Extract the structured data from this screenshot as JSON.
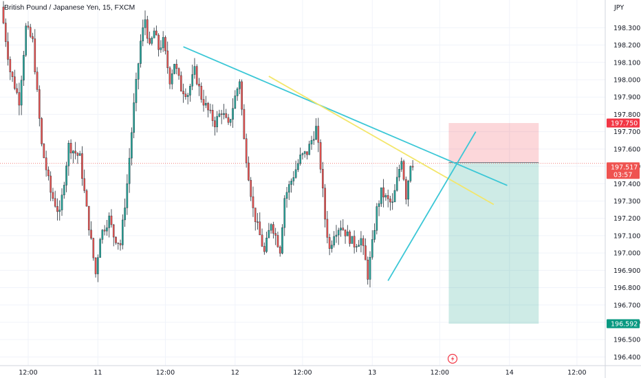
{
  "header": {
    "title": "British Pound / Japanese Yen, 15, FXCM"
  },
  "axis": {
    "currency": "JPY"
  },
  "chart_data": {
    "type": "candlestick",
    "title": "British Pound / Japanese Yen, 15, FXCM",
    "ylim": [
      196.35,
      198.46
    ],
    "y_ticks": [
      "198.300",
      "198.200",
      "198.100",
      "198.000",
      "197.900",
      "197.800",
      "197.700",
      "197.600",
      "197.500",
      "197.400",
      "197.300",
      "197.200",
      "197.100",
      "197.000",
      "196.900",
      "196.800",
      "196.700",
      "196.600",
      "196.500",
      "196.400"
    ],
    "x_ticks": [
      "12:00",
      "11",
      "12:00",
      "12",
      "12:00",
      "13",
      "12:00",
      "14",
      "12:00"
    ],
    "colors": {
      "up": "#26a69a",
      "down": "#ef5350",
      "candle": "#1f2a33"
    },
    "anchors": [
      {
        "t": 0,
        "p": 198.42
      },
      {
        "t": 4,
        "p": 198.05
      },
      {
        "t": 8,
        "p": 197.88
      },
      {
        "t": 11,
        "p": 198.3
      },
      {
        "t": 14,
        "p": 198.22
      },
      {
        "t": 18,
        "p": 197.62
      },
      {
        "t": 22,
        "p": 197.35
      },
      {
        "t": 26,
        "p": 197.22
      },
      {
        "t": 30,
        "p": 197.62
      },
      {
        "t": 35,
        "p": 197.55
      },
      {
        "t": 38,
        "p": 197.25
      },
      {
        "t": 42,
        "p": 196.88
      },
      {
        "t": 44,
        "p": 197.1
      },
      {
        "t": 48,
        "p": 197.2
      },
      {
        "t": 50,
        "p": 197.1
      },
      {
        "t": 53,
        "p": 197.05
      },
      {
        "t": 56,
        "p": 197.4
      },
      {
        "t": 59,
        "p": 197.85
      },
      {
        "t": 62,
        "p": 198.22
      },
      {
        "t": 64,
        "p": 198.35
      },
      {
        "t": 66,
        "p": 198.18
      },
      {
        "t": 68,
        "p": 198.28
      },
      {
        "t": 70,
        "p": 198.18
      },
      {
        "t": 72,
        "p": 198.22
      },
      {
        "t": 75,
        "p": 198.0
      },
      {
        "t": 77,
        "p": 198.1
      },
      {
        "t": 80,
        "p": 197.95
      },
      {
        "t": 83,
        "p": 197.92
      },
      {
        "t": 86,
        "p": 198.05
      },
      {
        "t": 89,
        "p": 197.9
      },
      {
        "t": 92,
        "p": 197.82
      },
      {
        "t": 95,
        "p": 197.75
      },
      {
        "t": 98,
        "p": 197.82
      },
      {
        "t": 101,
        "p": 197.73
      },
      {
        "t": 104,
        "p": 197.9
      },
      {
        "t": 106,
        "p": 198.0
      },
      {
        "t": 108,
        "p": 197.65
      },
      {
        "t": 110,
        "p": 197.45
      },
      {
        "t": 112,
        "p": 197.25
      },
      {
        "t": 114,
        "p": 197.15
      },
      {
        "t": 117,
        "p": 197.0
      },
      {
        "t": 120,
        "p": 197.18
      },
      {
        "t": 124,
        "p": 197.02
      },
      {
        "t": 126,
        "p": 197.32
      },
      {
        "t": 130,
        "p": 197.45
      },
      {
        "t": 133,
        "p": 197.55
      },
      {
        "t": 136,
        "p": 197.58
      },
      {
        "t": 138,
        "p": 197.65
      },
      {
        "t": 140,
        "p": 197.72
      },
      {
        "t": 142,
        "p": 197.5
      },
      {
        "t": 144,
        "p": 197.2
      },
      {
        "t": 146,
        "p": 197.02
      },
      {
        "t": 148,
        "p": 197.12
      },
      {
        "t": 151,
        "p": 197.16
      },
      {
        "t": 154,
        "p": 197.1
      },
      {
        "t": 157,
        "p": 197.05
      },
      {
        "t": 160,
        "p": 197.08
      },
      {
        "t": 162,
        "p": 196.95
      },
      {
        "t": 163,
        "p": 196.87
      },
      {
        "t": 165,
        "p": 197.05
      },
      {
        "t": 167,
        "p": 197.25
      },
      {
        "t": 169,
        "p": 197.35
      },
      {
        "t": 172,
        "p": 197.3
      },
      {
        "t": 174,
        "p": 197.28
      },
      {
        "t": 176,
        "p": 197.42
      },
      {
        "t": 178,
        "p": 197.55
      },
      {
        "t": 180,
        "p": 197.33
      },
      {
        "t": 182,
        "p": 197.52
      }
    ],
    "x_domain": [
      0,
      240
    ],
    "x_tick_t": [
      11,
      42,
      72,
      103,
      133,
      164,
      194,
      225,
      255
    ],
    "trendlines": [
      {
        "name": "cyan-resistance",
        "color": "#3bc7d6",
        "t1": 80,
        "p1": 198.19,
        "t2": 224,
        "p2": 197.39
      },
      {
        "name": "yellow-line",
        "color": "#f3e66a",
        "t1": 118,
        "p1": 198.02,
        "t2": 218,
        "p2": 197.28
      },
      {
        "name": "cyan-support",
        "color": "#3bc7d6",
        "t1": 171,
        "p1": 196.84,
        "t2": 210,
        "p2": 197.7
      }
    ],
    "position": {
      "t_start": 198,
      "t_end": 238,
      "entry": 197.522,
      "stop": 197.75,
      "target": 196.592,
      "entry_label": "197.522",
      "stop_label": "197.750",
      "target_label": "196.592",
      "current_label": "197.517",
      "countdown": "03:57"
    }
  }
}
